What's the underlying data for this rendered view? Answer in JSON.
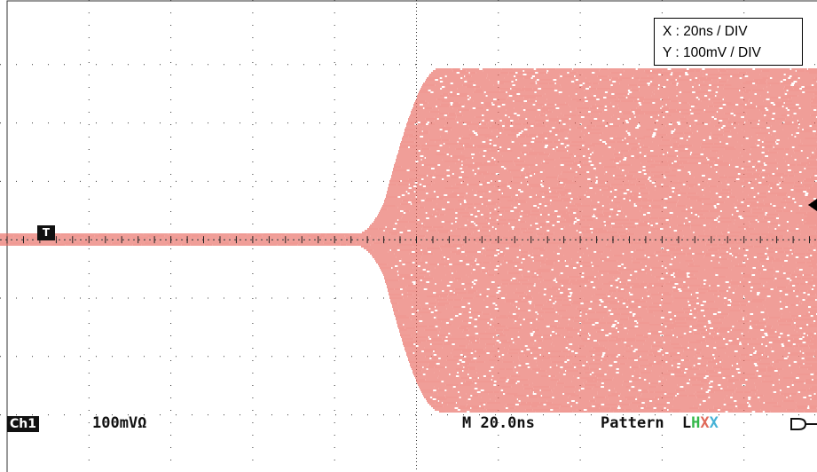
{
  "display": {
    "grid_divisions_x": 10,
    "grid_divisions_y": 8,
    "trace_color": "#e8645a",
    "grid_color": "#333333"
  },
  "scale_legend": {
    "x_label": "X : 20ns / DIV",
    "y_label": "Y : 100mV / DIV"
  },
  "trigger_marker": "T",
  "status_bar": {
    "channel": "Ch1",
    "volts_per_div": "100mVΩ",
    "timebase": "M 20.0ns",
    "pattern_label": "Pattern",
    "pattern_chars": [
      "L",
      "H",
      "X",
      "X"
    ],
    "pattern_colors": [
      "#111111",
      "#35b84a",
      "#e06a5a",
      "#46b2d6"
    ]
  },
  "waveform": {
    "type": "burst",
    "description_units": "div",
    "baseline_div": 0.0,
    "flat_amplitude_div": 0.1,
    "burst_start_div": 4.6,
    "full_amplitude_div": 2.95,
    "trace_end_div": 10
  }
}
